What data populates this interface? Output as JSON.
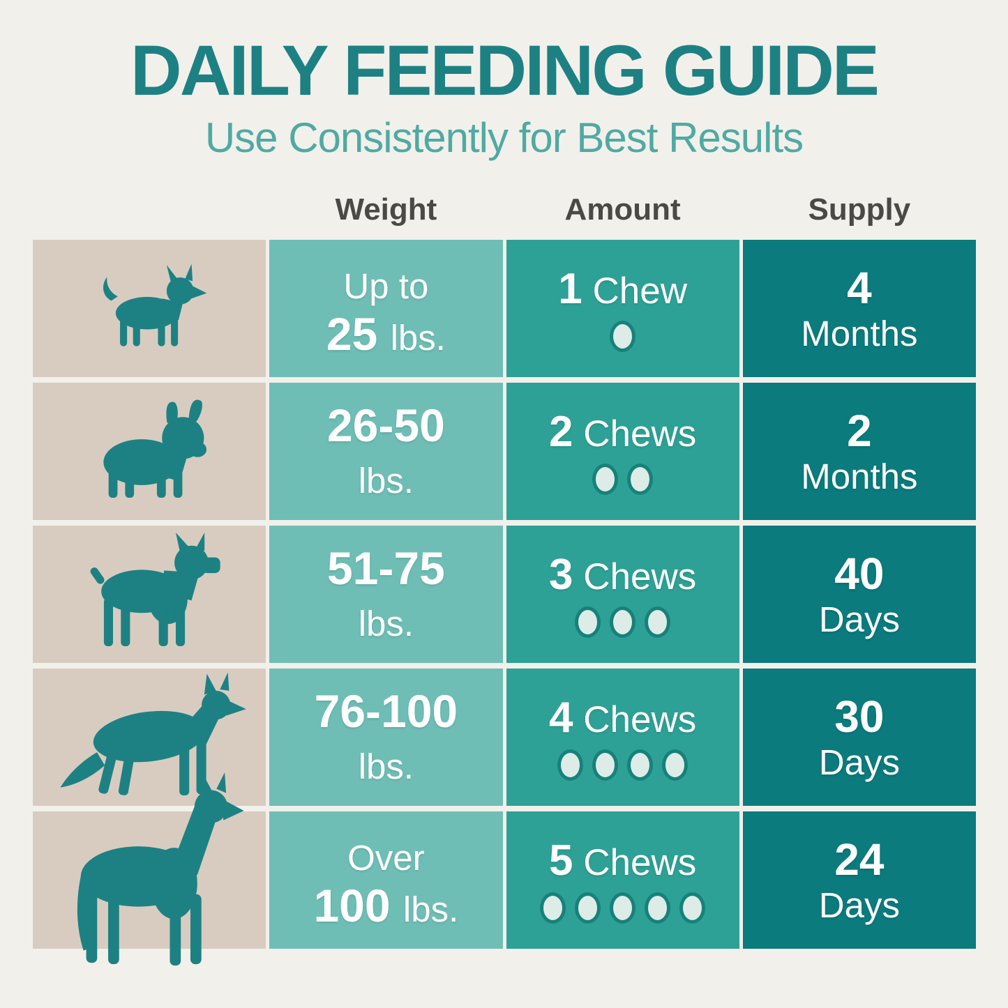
{
  "title": "DAILY FEEDING GUIDE",
  "subtitle": "Use Consistently for Best Results",
  "columns": {
    "weight": "Weight",
    "amount": "Amount",
    "supply": "Supply"
  },
  "colors": {
    "background": "#f2f0eb",
    "title_teal": "#1d8183",
    "subtitle_teal": "#4faaa2",
    "header_charcoal": "#4a4945",
    "dog_column_beige": "#d8ccc0",
    "weight_column_teal": "#6fbeb6",
    "amount_column_teal": "#2ea196",
    "supply_column_teal": "#0b7b7d",
    "chew_dot_fill": "#deece7",
    "text_white": "#ffffff"
  },
  "rows": [
    {
      "dog": "chihuahua",
      "weight": {
        "line1_bold": "",
        "line1_plain": "Up to",
        "line2_bold": "25 ",
        "line2_plain": "lbs."
      },
      "amount": {
        "count": "1",
        "label": " Chew",
        "dots": 1
      },
      "supply": {
        "value": "4",
        "unit": "Months"
      }
    },
    {
      "dog": "french-bulldog",
      "weight": {
        "line1_bold": "26-50",
        "line1_plain": "",
        "line2_bold": "",
        "line2_plain": "lbs."
      },
      "amount": {
        "count": "2",
        "label": " Chews",
        "dots": 2
      },
      "supply": {
        "value": "2",
        "unit": "Months"
      }
    },
    {
      "dog": "boxer",
      "weight": {
        "line1_bold": "51-75",
        "line1_plain": "",
        "line2_bold": "",
        "line2_plain": "lbs."
      },
      "amount": {
        "count": "3",
        "label": " Chews",
        "dots": 3
      },
      "supply": {
        "value": "40",
        "unit": "Days"
      }
    },
    {
      "dog": "german-shepherd",
      "weight": {
        "line1_bold": "76-100",
        "line1_plain": "",
        "line2_bold": "",
        "line2_plain": "lbs."
      },
      "amount": {
        "count": "4",
        "label": " Chews",
        "dots": 4
      },
      "supply": {
        "value": "30",
        "unit": "Days"
      }
    },
    {
      "dog": "great-dane",
      "weight": {
        "line1_bold": "",
        "line1_plain": "Over",
        "line2_bold": "100 ",
        "line2_plain": "lbs."
      },
      "amount": {
        "count": "5",
        "label": " Chews",
        "dots": 5
      },
      "supply": {
        "value": "24",
        "unit": "Days"
      }
    }
  ]
}
